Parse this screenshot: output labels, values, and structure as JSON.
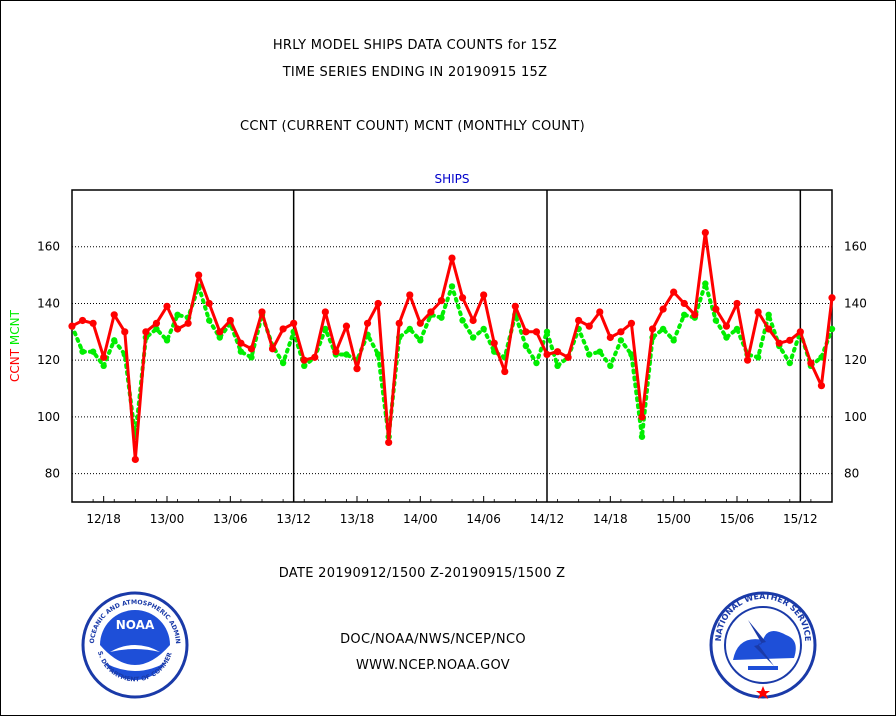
{
  "header": {
    "line1": "HRLY MODEL SHIPS DATA COUNTS for 15Z",
    "line2": "TIME SERIES ENDING IN 20190915 15Z",
    "line3": "CCNT (CURRENT COUNT) MCNT (MONTHLY COUNT)"
  },
  "footer": {
    "date_range": "DATE 20190912/1500 Z-20190915/1500 Z",
    "org": "DOC/NOAA/NWS/NCEP/NCO",
    "url": "WWW.NCEP.NOAA.GOV"
  },
  "logos": {
    "left_text": "NOAA",
    "left_ring": "NATIONAL OCEANIC AND ATMOSPHERIC ADMINISTRATION",
    "left_ring_bottom": "U.S. DEPARTMENT OF COMMERCE",
    "right_ring": "NATIONAL WEATHER SERVICE"
  },
  "colors": {
    "ccnt": "#ff0000",
    "mcnt": "#00ee00",
    "title_blue": "#0000cc",
    "footer_red": "#ff0000",
    "footer_blue": "#0000cc"
  },
  "chart_data": {
    "type": "line",
    "title": "SHIPS",
    "ylabel_left_1": "CCNT",
    "ylabel_left_2": "MCNT",
    "ylim": [
      70,
      180
    ],
    "yticks": [
      80,
      100,
      120,
      140,
      160
    ],
    "x_start_hour": 15,
    "x_tick_labels": [
      "12/18",
      "13/00",
      "13/06",
      "13/12",
      "13/18",
      "14/00",
      "14/06",
      "14/12",
      "14/18",
      "15/00",
      "15/06",
      "15/12"
    ],
    "grid": true,
    "series": [
      {
        "name": "CCNT",
        "style": "solid",
        "values": [
          132,
          134,
          133,
          121,
          136,
          130,
          85,
          130,
          133,
          139,
          131,
          133,
          150,
          140,
          130,
          134,
          126,
          124,
          137,
          124,
          131,
          133,
          120,
          121,
          137,
          123,
          132,
          117,
          133,
          140,
          91,
          133,
          143,
          133,
          137,
          141,
          156,
          142,
          134,
          143,
          126,
          116,
          139,
          130,
          130,
          122,
          123,
          121,
          134,
          132,
          137,
          128,
          130,
          133,
          100,
          131,
          138,
          144,
          140,
          136,
          165,
          138,
          132,
          140,
          120,
          137,
          131,
          126,
          127,
          130,
          119,
          111,
          142
        ]
      },
      {
        "name": "MCNT",
        "style": "dotted",
        "values": [
          132,
          123,
          123,
          118,
          127,
          122,
          93,
          128,
          131,
          127,
          136,
          135,
          146,
          134,
          128,
          133,
          123,
          121,
          136,
          125,
          119,
          130,
          118,
          121,
          131,
          122,
          122,
          120,
          129,
          122,
          93,
          128,
          131,
          127,
          136,
          135,
          146,
          134,
          128,
          131,
          123,
          121,
          136,
          125,
          119,
          130,
          118,
          121,
          131,
          122,
          123,
          118,
          127,
          122,
          93,
          128,
          131,
          127,
          136,
          135,
          147,
          134,
          128,
          131,
          122,
          121,
          136,
          125,
          119,
          130,
          118,
          121,
          131
        ]
      }
    ]
  }
}
